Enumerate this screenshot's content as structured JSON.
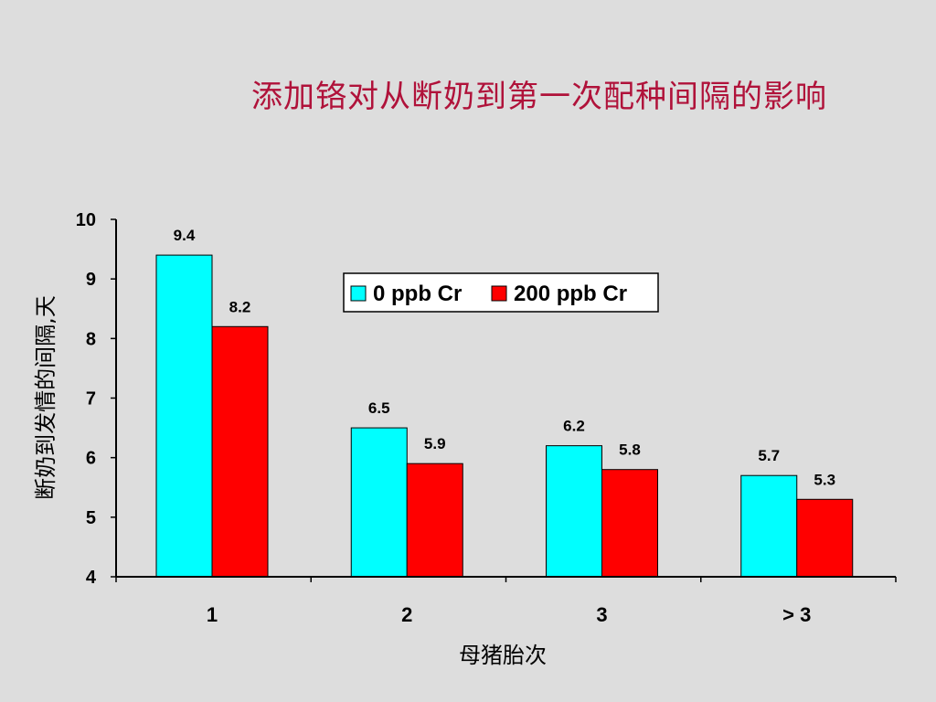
{
  "chart_data": {
    "type": "bar",
    "title": "添加铬对从断奶到第一次配种间隔的影响",
    "xlabel": "母猪胎次",
    "ylabel": "断奶到发情的间隔,天",
    "categories": [
      "1",
      "2",
      "3",
      "> 3"
    ],
    "ylim": [
      4,
      10
    ],
    "yticks": [
      4,
      5,
      6,
      7,
      8,
      9,
      10
    ],
    "grid": false,
    "legend_position": "top-center",
    "series": [
      {
        "name": "0 ppb Cr",
        "color": "#00ffff",
        "values": [
          9.4,
          6.5,
          6.2,
          5.7
        ],
        "labels": [
          "9.4",
          "6.5",
          "6.2",
          "5.7"
        ]
      },
      {
        "name": "200 ppb Cr",
        "color": "#ff0000",
        "values": [
          8.2,
          5.9,
          5.8,
          5.3
        ],
        "labels": [
          "8.2",
          "5.9",
          "5.8",
          "5.3"
        ]
      }
    ]
  }
}
